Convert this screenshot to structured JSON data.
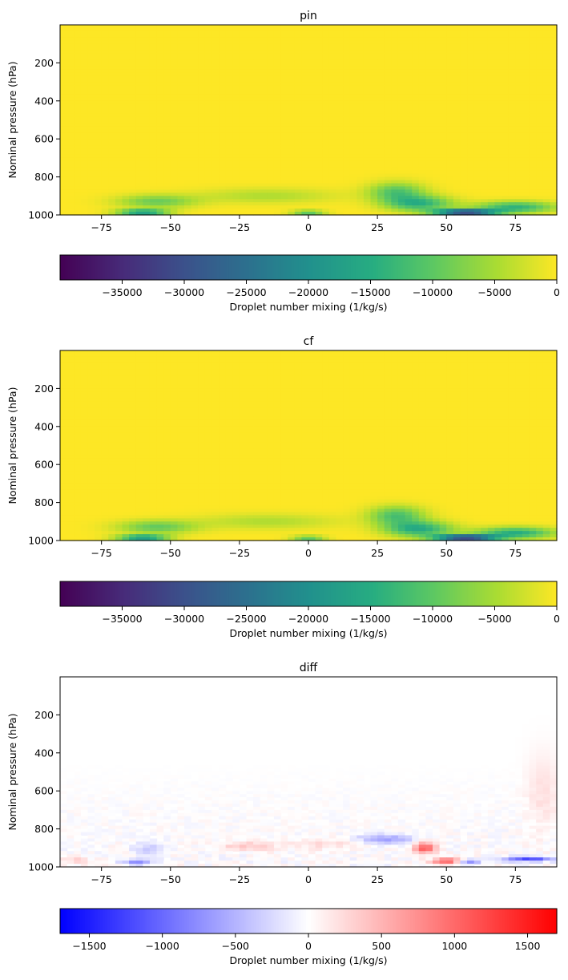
{
  "chart_data": [
    {
      "type": "heatmap",
      "title": "pin",
      "ylabel": "Nominal pressure (hPa)",
      "xlabel": "",
      "x_ticks": [
        -75,
        -50,
        -25,
        0,
        25,
        50,
        75
      ],
      "x_tick_labels": [
        "−75",
        "−50",
        "−25",
        "0",
        "25",
        "50",
        "75"
      ],
      "y_ticks": [
        200,
        400,
        600,
        800,
        1000
      ],
      "y_tick_labels": [
        "200",
        "400",
        "600",
        "800",
        "1000"
      ],
      "xlim": [
        -90,
        90
      ],
      "ylim": [
        1000,
        0
      ],
      "colormap": "viridis",
      "colorbar": {
        "label": "Droplet number mixing (1/kg/s)",
        "range": [
          -40000,
          0
        ],
        "ticks": [
          -35000,
          -30000,
          -25000,
          -20000,
          -15000,
          -10000,
          -5000,
          0
        ],
        "tick_labels": [
          "−35000",
          "−30000",
          "−25000",
          "−20000",
          "−15000",
          "−10000",
          "−5000",
          "0"
        ],
        "orientation": "horizontal"
      },
      "features": [
        {
          "lat": -60,
          "p": 985,
          "wlat": 9,
          "wp": 12,
          "value": -22000
        },
        {
          "lat": -55,
          "p": 930,
          "wlat": 14,
          "wp": 35,
          "value": -9000
        },
        {
          "lat": 0,
          "p": 985,
          "wlat": 6,
          "wp": 8,
          "value": -20000
        },
        {
          "lat": 32,
          "p": 880,
          "wlat": 10,
          "wp": 50,
          "value": -11000
        },
        {
          "lat": 40,
          "p": 940,
          "wlat": 12,
          "wp": 40,
          "value": -14000
        },
        {
          "lat": 57,
          "p": 985,
          "wlat": 11,
          "wp": 14,
          "value": -36000
        },
        {
          "lat": 75,
          "p": 960,
          "wlat": 14,
          "wp": 30,
          "value": -14000
        },
        {
          "lat": -15,
          "p": 900,
          "wlat": 25,
          "wp": 40,
          "value": -4500
        }
      ]
    },
    {
      "type": "heatmap",
      "title": "cf",
      "ylabel": "Nominal pressure (hPa)",
      "xlabel": "",
      "x_ticks": [
        -75,
        -50,
        -25,
        0,
        25,
        50,
        75
      ],
      "x_tick_labels": [
        "−75",
        "−50",
        "−25",
        "0",
        "25",
        "50",
        "75"
      ],
      "y_ticks": [
        200,
        400,
        600,
        800,
        1000
      ],
      "y_tick_labels": [
        "200",
        "400",
        "600",
        "800",
        "1000"
      ],
      "xlim": [
        -90,
        90
      ],
      "ylim": [
        1000,
        0
      ],
      "colormap": "viridis",
      "colorbar": {
        "label": "Droplet number mixing (1/kg/s)",
        "range": [
          -40000,
          0
        ],
        "ticks": [
          -35000,
          -30000,
          -25000,
          -20000,
          -15000,
          -10000,
          -5000,
          0
        ],
        "tick_labels": [
          "−35000",
          "−30000",
          "−25000",
          "−20000",
          "−15000",
          "−10000",
          "−5000",
          "0"
        ],
        "orientation": "horizontal"
      },
      "features": [
        {
          "lat": -60,
          "p": 985,
          "wlat": 9,
          "wp": 12,
          "value": -23000
        },
        {
          "lat": -55,
          "p": 930,
          "wlat": 14,
          "wp": 35,
          "value": -9500
        },
        {
          "lat": 0,
          "p": 985,
          "wlat": 6,
          "wp": 8,
          "value": -20000
        },
        {
          "lat": 32,
          "p": 870,
          "wlat": 10,
          "wp": 50,
          "value": -11500
        },
        {
          "lat": 40,
          "p": 940,
          "wlat": 12,
          "wp": 40,
          "value": -15000
        },
        {
          "lat": 57,
          "p": 985,
          "wlat": 11,
          "wp": 14,
          "value": -37000
        },
        {
          "lat": 75,
          "p": 960,
          "wlat": 14,
          "wp": 30,
          "value": -15000
        },
        {
          "lat": -15,
          "p": 900,
          "wlat": 25,
          "wp": 40,
          "value": -4500
        }
      ]
    },
    {
      "type": "heatmap",
      "title": "diff",
      "ylabel": "Nominal pressure (hPa)",
      "xlabel": "",
      "x_ticks": [
        -75,
        -50,
        -25,
        0,
        25,
        50,
        75
      ],
      "x_tick_labels": [
        "−75",
        "−50",
        "−25",
        "0",
        "25",
        "50",
        "75"
      ],
      "y_ticks": [
        200,
        400,
        600,
        800,
        1000
      ],
      "y_tick_labels": [
        "200",
        "400",
        "600",
        "800",
        "1000"
      ],
      "xlim": [
        -90,
        90
      ],
      "ylim": [
        1000,
        0
      ],
      "colormap": "bwr",
      "colorbar": {
        "label": "Droplet number mixing (1/kg/s)",
        "range": [
          -1700,
          1700
        ],
        "ticks": [
          -1500,
          -1000,
          -500,
          0,
          500,
          1000,
          1500
        ],
        "tick_labels": [
          "−1500",
          "−1000",
          "−500",
          "0",
          "500",
          "1000",
          "1500"
        ],
        "orientation": "horizontal"
      },
      "features": [
        {
          "lat": -62,
          "p": 975,
          "wlat": 6,
          "wp": 15,
          "value": -700
        },
        {
          "lat": -58,
          "p": 910,
          "wlat": 5,
          "wp": 40,
          "value": -350
        },
        {
          "lat": -22,
          "p": 890,
          "wlat": 10,
          "wp": 25,
          "value": 350
        },
        {
          "lat": 5,
          "p": 880,
          "wlat": 10,
          "wp": 25,
          "value": 250
        },
        {
          "lat": 25,
          "p": 850,
          "wlat": 8,
          "wp": 25,
          "value": -500
        },
        {
          "lat": 33,
          "p": 860,
          "wlat": 5,
          "wp": 25,
          "value": -400
        },
        {
          "lat": 42,
          "p": 900,
          "wlat": 4,
          "wp": 30,
          "value": 1100
        },
        {
          "lat": 50,
          "p": 970,
          "wlat": 5,
          "wp": 15,
          "value": 1200
        },
        {
          "lat": 58,
          "p": 975,
          "wlat": 4,
          "wp": 12,
          "value": -800
        },
        {
          "lat": 80,
          "p": 960,
          "wlat": 10,
          "wp": 12,
          "value": -1200
        },
        {
          "lat": 85,
          "p": 600,
          "wlat": 6,
          "wp": 200,
          "value": 200
        },
        {
          "lat": -85,
          "p": 960,
          "wlat": 5,
          "wp": 20,
          "value": 300
        }
      ]
    }
  ]
}
